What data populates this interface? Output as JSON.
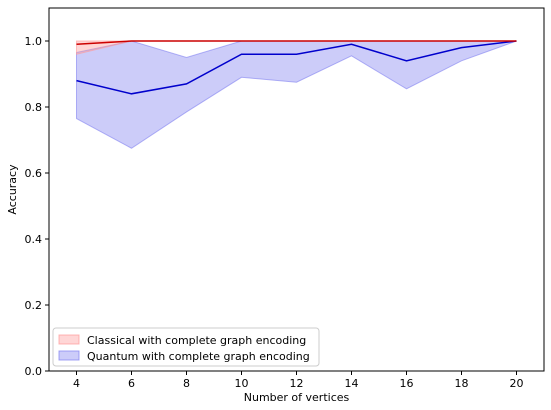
{
  "chart_data": {
    "type": "line",
    "title": "",
    "xlabel": "Number of vertices",
    "ylabel": "Accuracy",
    "x": [
      4,
      6,
      8,
      10,
      12,
      14,
      16,
      18,
      20
    ],
    "xlim": [
      3,
      21
    ],
    "ylim": [
      0,
      1.1
    ],
    "xticks": [
      4,
      6,
      8,
      10,
      12,
      14,
      16,
      18,
      20
    ],
    "yticks": [
      "0.0",
      "0.2",
      "0.4",
      "0.6",
      "0.8",
      "1.0"
    ],
    "legend_position": "lower-left",
    "grid": false,
    "series": [
      {
        "name": "Classical with complete graph encoding",
        "color": "#cc0000",
        "fill_color": "#ff9999",
        "values": [
          0.99,
          1.0,
          1.0,
          1.0,
          1.0,
          1.0,
          1.0,
          1.0,
          1.0
        ],
        "lower": [
          0.96,
          1.0,
          1.0,
          1.0,
          1.0,
          1.0,
          1.0,
          1.0,
          1.0
        ],
        "upper": [
          1.0,
          1.0,
          1.0,
          1.0,
          1.0,
          1.0,
          1.0,
          1.0,
          1.0
        ]
      },
      {
        "name": "Quantum with complete graph encoding",
        "color": "#0000cc",
        "fill_color": "#8080f0",
        "values": [
          0.88,
          0.84,
          0.87,
          0.96,
          0.96,
          0.99,
          0.94,
          0.98,
          1.0
        ],
        "lower": [
          0.765,
          0.675,
          0.785,
          0.89,
          0.875,
          0.955,
          0.855,
          0.94,
          1.0
        ],
        "upper": [
          0.965,
          1.0,
          0.95,
          1.0,
          1.0,
          1.0,
          1.0,
          1.0,
          1.0
        ]
      }
    ]
  }
}
